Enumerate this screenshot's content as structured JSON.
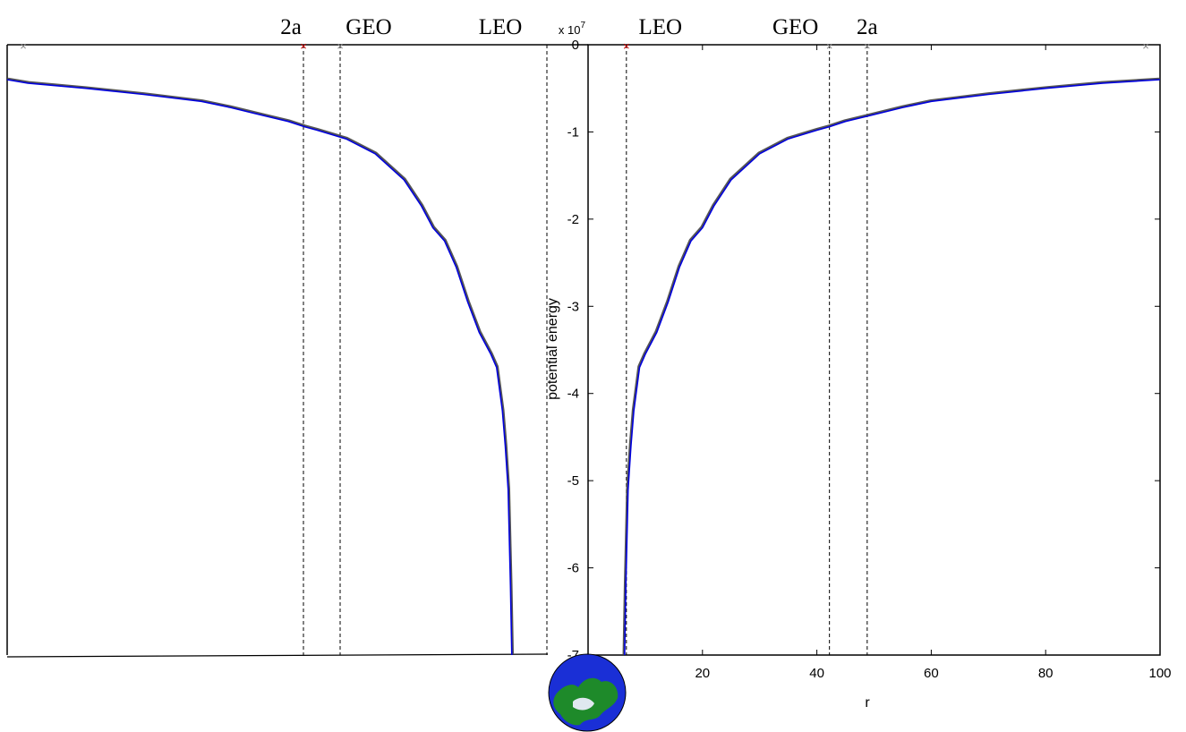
{
  "chart_data": {
    "type": "line",
    "title": "",
    "xlabel": "r",
    "ylabel": "potential energy",
    "y_exponent_label": "x 10",
    "y_exponent_power": "7",
    "xlim": [
      0,
      100
    ],
    "ylim": [
      -7,
      0
    ],
    "x_ticks": [
      "20",
      "40",
      "60",
      "80",
      "100"
    ],
    "y_ticks": [
      "0",
      "-1",
      "-2",
      "-3",
      "-4",
      "-5",
      "-6",
      "-7"
    ],
    "grid": false,
    "series": [
      {
        "color": "#0000dd",
        "x": [
          6.38,
          6.6,
          7,
          7.5,
          8,
          9,
          10,
          12,
          14,
          16,
          18,
          20,
          22,
          25,
          30,
          35,
          40,
          42.2,
          45,
          48.8,
          55,
          60,
          70,
          80,
          90,
          100
        ],
        "y": [
          -7,
          -6.2,
          -5.1,
          -4.6,
          -4.2,
          -3.7,
          -3.55,
          -3.3,
          -2.95,
          -2.55,
          -2.25,
          -2.1,
          -1.85,
          -1.55,
          -1.25,
          -1.08,
          -0.98,
          -0.94,
          -0.88,
          -0.82,
          -0.72,
          -0.65,
          -0.57,
          -0.5,
          -0.44,
          -0.4
        ]
      }
    ],
    "markers": [
      {
        "label": "LEO",
        "x": 6.7
      },
      {
        "label": "GEO",
        "x": 42.2
      },
      {
        "label": "2a",
        "x": 48.8
      }
    ],
    "mirror_markers": [
      {
        "label": "2a"
      },
      {
        "label": "GEO"
      },
      {
        "label": "LEO"
      }
    ],
    "marker_color": "#cc0000",
    "mirror_marker_color": "#888888"
  }
}
